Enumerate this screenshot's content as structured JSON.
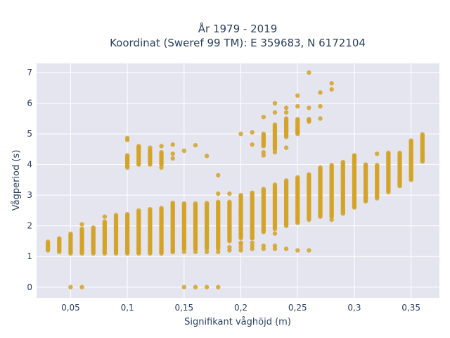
{
  "chart_data": {
    "type": "scatter",
    "title_lines": [
      "År 1979 - 2019",
      "Koordinat (Sweref 99 TM): E 359683, N 6172104"
    ],
    "xlabel": "Signifikant våghöjd (m)",
    "ylabel": "Vågperiod (s)",
    "xlim": [
      0.02,
      0.375
    ],
    "ylim": [
      -0.35,
      7.3
    ],
    "x_ticks": [
      {
        "value": 0.05,
        "label": "0,05"
      },
      {
        "value": 0.1,
        "label": "0,1"
      },
      {
        "value": 0.15,
        "label": "0,15"
      },
      {
        "value": 0.2,
        "label": "0,2"
      },
      {
        "value": 0.25,
        "label": "0,25"
      },
      {
        "value": 0.3,
        "label": "0,3"
      },
      {
        "value": 0.35,
        "label": "0,35"
      }
    ],
    "y_ticks": [
      {
        "value": 0,
        "label": "0"
      },
      {
        "value": 1,
        "label": "1"
      },
      {
        "value": 2,
        "label": "2"
      },
      {
        "value": 3,
        "label": "3"
      },
      {
        "value": 4,
        "label": "4"
      },
      {
        "value": 5,
        "label": "5"
      },
      {
        "value": 6,
        "label": "6"
      },
      {
        "value": 7,
        "label": "7"
      }
    ],
    "grid": true,
    "colors": {
      "background": "#e5e5f0",
      "grid": "#ffffff",
      "marker": "#d4a326"
    },
    "columns": [
      {
        "x": 0.03,
        "ymin": 1.2,
        "ymax": 1.5
      },
      {
        "x": 0.04,
        "ymin": 1.15,
        "ymax": 1.6
      },
      {
        "x": 0.05,
        "ymin": 1.1,
        "ymax": 1.75
      },
      {
        "x": 0.06,
        "ymin": 1.1,
        "ymax": 1.9
      },
      {
        "x": 0.07,
        "ymin": 1.1,
        "ymax": 1.95
      },
      {
        "x": 0.08,
        "ymin": 1.1,
        "ymax": 2.15
      },
      {
        "x": 0.09,
        "ymin": 1.1,
        "ymax": 2.3
      },
      {
        "x": 0.1,
        "ymin": 1.1,
        "ymax": 2.4
      },
      {
        "x": 0.11,
        "ymin": 1.1,
        "ymax": 2.5
      },
      {
        "x": 0.12,
        "ymin": 1.1,
        "ymax": 2.55
      },
      {
        "x": 0.13,
        "ymin": 1.1,
        "ymax": 2.6
      },
      {
        "x": 0.14,
        "ymin": 1.15,
        "ymax": 2.75
      },
      {
        "x": 0.15,
        "ymin": 1.25,
        "ymax": 2.75
      },
      {
        "x": 0.16,
        "ymin": 1.25,
        "ymax": 2.75
      },
      {
        "x": 0.17,
        "ymin": 1.3,
        "ymax": 2.75
      },
      {
        "x": 0.18,
        "ymin": 1.3,
        "ymax": 2.8
      },
      {
        "x": 0.19,
        "ymin": 1.5,
        "ymax": 2.8
      },
      {
        "x": 0.2,
        "ymin": 1.6,
        "ymax": 3.0
      },
      {
        "x": 0.21,
        "ymin": 1.6,
        "ymax": 3.1
      },
      {
        "x": 0.22,
        "ymin": 1.8,
        "ymax": 3.2
      },
      {
        "x": 0.23,
        "ymin": 1.9,
        "ymax": 3.35
      },
      {
        "x": 0.24,
        "ymin": 2.0,
        "ymax": 3.5
      },
      {
        "x": 0.25,
        "ymin": 2.1,
        "ymax": 3.6
      },
      {
        "x": 0.26,
        "ymin": 2.2,
        "ymax": 3.7
      },
      {
        "x": 0.27,
        "ymin": 2.3,
        "ymax": 3.9
      },
      {
        "x": 0.28,
        "ymin": 2.3,
        "ymax": 4.0
      },
      {
        "x": 0.29,
        "ymin": 2.4,
        "ymax": 4.1
      },
      {
        "x": 0.3,
        "ymin": 2.6,
        "ymax": 4.3
      },
      {
        "x": 0.31,
        "ymin": 2.8,
        "ymax": 4.0
      },
      {
        "x": 0.32,
        "ymin": 2.9,
        "ymax": 4.0
      },
      {
        "x": 0.33,
        "ymin": 3.1,
        "ymax": 4.4
      },
      {
        "x": 0.34,
        "ymin": 3.3,
        "ymax": 4.4
      },
      {
        "x": 0.35,
        "ymin": 3.5,
        "ymax": 4.8
      },
      {
        "x": 0.36,
        "ymin": 4.1,
        "ymax": 5.0
      }
    ],
    "short_period_clusters": [
      {
        "x": 0.1,
        "values": [
          1.2,
          1.3
        ]
      },
      {
        "x": 0.11,
        "values": [
          1.15,
          1.25
        ]
      },
      {
        "x": 0.12,
        "values": [
          1.2,
          1.3
        ]
      },
      {
        "x": 0.13,
        "values": [
          1.15,
          1.25
        ]
      },
      {
        "x": 0.14,
        "values": [
          1.15,
          1.25
        ]
      },
      {
        "x": 0.15,
        "values": [
          1.15,
          1.25
        ]
      },
      {
        "x": 0.16,
        "values": [
          1.15,
          1.25
        ]
      },
      {
        "x": 0.17,
        "values": [
          1.15,
          1.25
        ]
      },
      {
        "x": 0.18,
        "values": [
          1.15,
          1.25
        ]
      },
      {
        "x": 0.19,
        "values": [
          1.2,
          1.3
        ]
      },
      {
        "x": 0.2,
        "values": [
          1.2,
          1.3
        ]
      },
      {
        "x": 0.21,
        "values": [
          1.25,
          1.35
        ]
      },
      {
        "x": 0.22,
        "values": [
          1.25,
          1.35
        ]
      },
      {
        "x": 0.23,
        "values": [
          1.25,
          1.35
        ]
      },
      {
        "x": 0.24,
        "values": [
          1.25
        ]
      },
      {
        "x": 0.25,
        "values": [
          1.2
        ]
      },
      {
        "x": 0.26,
        "values": [
          1.2
        ]
      },
      {
        "x": 0.2,
        "values": [
          1.45
        ]
      },
      {
        "x": 0.21,
        "values": [
          1.45
        ]
      },
      {
        "x": 0.15,
        "values": [
          1.45
        ]
      }
    ],
    "upper_cluster": [
      {
        "x": 0.1,
        "ymin": 3.9,
        "ymax": 4.3
      },
      {
        "x": 0.11,
        "ymin": 4.0,
        "ymax": 4.6
      },
      {
        "x": 0.12,
        "ymin": 4.0,
        "ymax": 4.5
      },
      {
        "x": 0.13,
        "ymin": 4.0,
        "ymax": 4.4
      },
      {
        "x": 0.22,
        "ymin": 4.6,
        "ymax": 5.0
      },
      {
        "x": 0.23,
        "ymin": 4.5,
        "ymax": 5.3
      },
      {
        "x": 0.24,
        "ymin": 4.9,
        "ymax": 5.5
      },
      {
        "x": 0.25,
        "ymin": 5.0,
        "ymax": 5.5
      },
      {
        "x": 0.26,
        "ymin": 5.4,
        "ymax": 5.5
      }
    ],
    "scatter_points": [
      [
        0.05,
        0
      ],
      [
        0.06,
        0
      ],
      [
        0.15,
        0
      ],
      [
        0.16,
        0
      ],
      [
        0.17,
        0
      ],
      [
        0.18,
        0
      ],
      [
        0.1,
        4.8
      ],
      [
        0.1,
        4.87
      ],
      [
        0.11,
        4.55
      ],
      [
        0.12,
        4.55
      ],
      [
        0.13,
        4.6
      ],
      [
        0.13,
        3.9
      ],
      [
        0.14,
        4.65
      ],
      [
        0.14,
        4.35
      ],
      [
        0.14,
        4.2
      ],
      [
        0.15,
        4.45
      ],
      [
        0.16,
        4.63
      ],
      [
        0.17,
        4.28
      ],
      [
        0.18,
        3.65
      ],
      [
        0.18,
        3.05
      ],
      [
        0.19,
        3.05
      ],
      [
        0.2,
        5.0
      ],
      [
        0.21,
        5.05
      ],
      [
        0.21,
        4.65
      ],
      [
        0.22,
        5.55
      ],
      [
        0.22,
        4.4
      ],
      [
        0.22,
        4.3
      ],
      [
        0.23,
        6.0
      ],
      [
        0.23,
        5.7
      ],
      [
        0.23,
        4.4
      ],
      [
        0.24,
        5.85
      ],
      [
        0.24,
        5.7
      ],
      [
        0.24,
        4.55
      ],
      [
        0.25,
        6.25
      ],
      [
        0.25,
        5.9
      ],
      [
        0.25,
        5.1
      ],
      [
        0.26,
        7.0
      ],
      [
        0.26,
        5.85
      ],
      [
        0.26,
        5.45
      ],
      [
        0.27,
        6.35
      ],
      [
        0.27,
        5.9
      ],
      [
        0.27,
        5.5
      ],
      [
        0.28,
        6.65
      ],
      [
        0.28,
        6.45
      ],
      [
        0.28,
        2.2
      ],
      [
        0.3,
        4.3
      ],
      [
        0.32,
        4.35
      ],
      [
        0.33,
        4.35
      ],
      [
        0.06,
        2.05
      ],
      [
        0.08,
        2.3
      ],
      [
        0.09,
        2.35
      ],
      [
        0.23,
        1.75
      ],
      [
        0.21,
        1.6
      ],
      [
        0.2,
        1.4
      ]
    ]
  }
}
